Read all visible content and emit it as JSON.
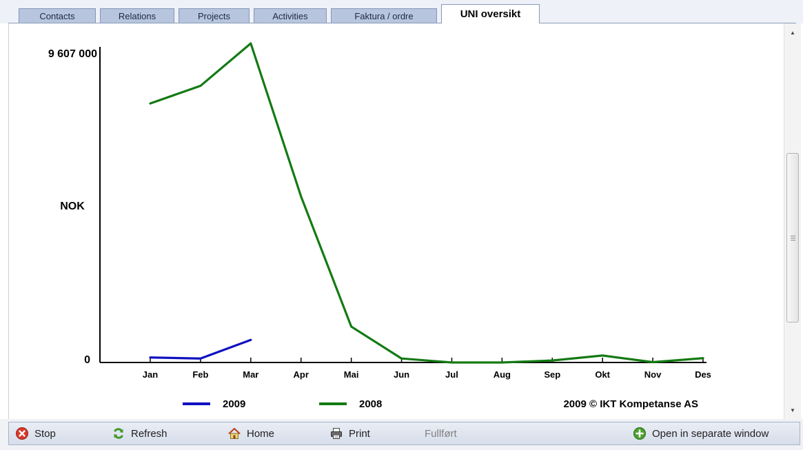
{
  "tabs": [
    {
      "label": "Contacts",
      "active": false
    },
    {
      "label": "Relations",
      "active": false
    },
    {
      "label": "Projects",
      "active": false
    },
    {
      "label": "Activities",
      "active": false
    },
    {
      "label": "Faktura / ordre",
      "active": false
    },
    {
      "label": "UNI oversikt",
      "active": true
    }
  ],
  "chart_data": {
    "type": "line",
    "categories": [
      "Jan",
      "Feb",
      "Mar",
      "Apr",
      "Mai",
      "Jun",
      "Jul",
      "Aug",
      "Sep",
      "Okt",
      "Nov",
      "Des"
    ],
    "series": [
      {
        "name": "2009",
        "color": "#1010c0",
        "values": [
          150000,
          120000,
          680000,
          null,
          null,
          null,
          null,
          null,
          null,
          null,
          null,
          null
        ]
      },
      {
        "name": "2008",
        "color": "#137a13",
        "values": [
          7800000,
          8330000,
          9607000,
          5000000,
          1080000,
          120000,
          0,
          0,
          60000,
          210000,
          10000,
          130000
        ]
      }
    ],
    "ylabel": "NOK",
    "ylim": [
      0,
      9607000
    ],
    "yticks": [
      {
        "value": 9607000,
        "label": "9 607 000"
      },
      {
        "value": 0,
        "label": "0"
      }
    ],
    "legend_position": "bottom",
    "annotation": "2009 © IKT Kompetanse AS"
  },
  "toolbar": {
    "stop": "Stop",
    "refresh": "Refresh",
    "home": "Home",
    "print": "Print",
    "status": "Fullført",
    "open_window": "Open in separate window"
  },
  "icons": {
    "stop": "stop-icon",
    "refresh": "refresh-icon",
    "home": "home-icon",
    "print": "print-icon",
    "open_window": "open-window-icon"
  },
  "colors": {
    "tab": "#b7c5de",
    "tab_active": "#ffffff",
    "toolbar": "#dfe5ef"
  }
}
